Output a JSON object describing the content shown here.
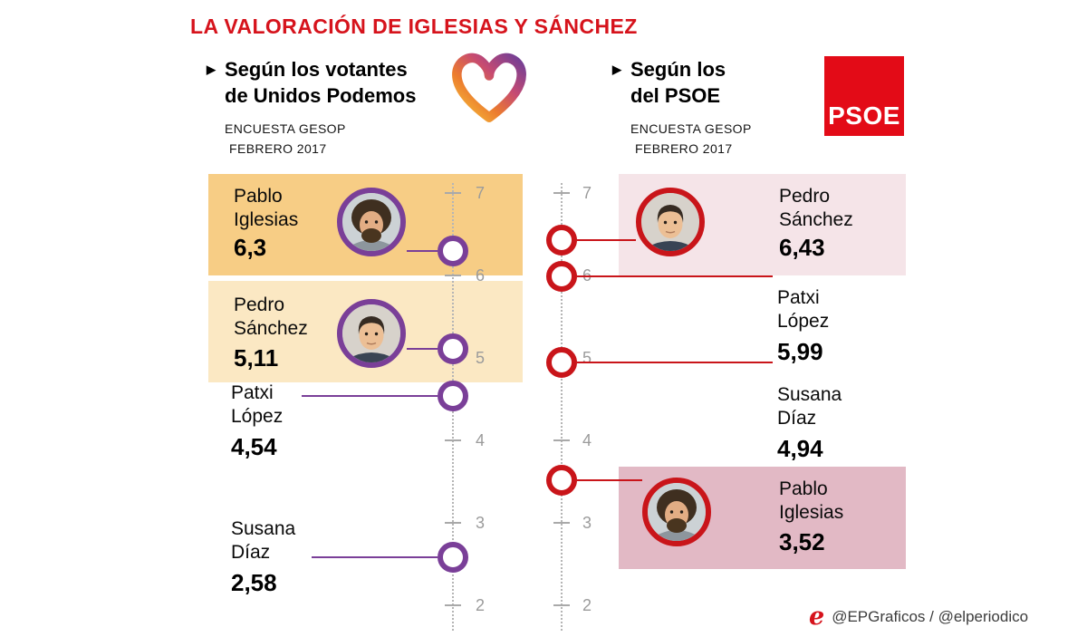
{
  "title": "LA VALORACIÓN DE IGLESIAS Y SÁNCHEZ",
  "credit": "@EPGraficos / @elperiodico",
  "colors": {
    "title": "#d6131c",
    "podemos_purple": "#7a3f98",
    "psoe_red": "#c9151a",
    "psoe_logo_red": "#e30b17",
    "highlight_orange_strong": "#f7cd85",
    "highlight_orange_soft": "#fbe8c3",
    "highlight_pink_soft": "#f5e4e8",
    "highlight_pink_strong": "#e2b9c5",
    "axis_gray": "#9b9b9b"
  },
  "left_panel": {
    "heading_line1": "Según los votantes",
    "heading_line2": "de Unidos Podemos",
    "source_line1": "ENCUESTA GESOP",
    "source_line2": "FEBRERO 2017",
    "logo": "unidos-podemos-heart"
  },
  "right_panel": {
    "heading_line1": "Según los",
    "heading_line2": "del PSOE",
    "source_line1": "ENCUESTA GESOP",
    "source_line2": "FEBRERO 2017",
    "logo_text": "PSOE"
  },
  "chart_data": [
    {
      "type": "scatter",
      "title": "Según los votantes de Unidos Podemos",
      "source": "ENCUESTA GESOP FEBRERO 2017",
      "axis_ticks": [
        7,
        6,
        5,
        4,
        3,
        2
      ],
      "ylim": [
        2,
        7
      ],
      "marker_color": "#7a3f98",
      "series": [
        {
          "name": "Pablo Iglesias",
          "first": "Pablo",
          "last": "Iglesias",
          "value": 6.3,
          "label": "6,3",
          "highlight": "strong",
          "photo": true
        },
        {
          "name": "Pedro Sánchez",
          "first": "Pedro",
          "last": "Sánchez",
          "value": 5.11,
          "label": "5,11",
          "highlight": "soft",
          "photo": true
        },
        {
          "name": "Patxi López",
          "first": "Patxi",
          "last": "López",
          "value": 4.54,
          "label": "4,54",
          "highlight": "none",
          "photo": false
        },
        {
          "name": "Susana Díaz",
          "first": "Susana",
          "last": "Díaz",
          "value": 2.58,
          "label": "2,58",
          "highlight": "none",
          "photo": false
        }
      ]
    },
    {
      "type": "scatter",
      "title": "Según los del PSOE",
      "source": "ENCUESTA GESOP FEBRERO 2017",
      "axis_ticks": [
        7,
        6,
        5,
        4,
        3,
        2
      ],
      "ylim": [
        2,
        7
      ],
      "marker_color": "#c9151a",
      "series": [
        {
          "name": "Pedro Sánchez",
          "first": "Pedro",
          "last": "Sánchez",
          "value": 6.43,
          "label": "6,43",
          "highlight": "soft",
          "photo": true
        },
        {
          "name": "Patxi López",
          "first": "Patxi",
          "last": "López",
          "value": 5.99,
          "label": "5,99",
          "highlight": "none",
          "photo": false
        },
        {
          "name": "Susana Díaz",
          "first": "Susana",
          "last": "Díaz",
          "value": 4.94,
          "label": "4,94",
          "highlight": "none",
          "photo": false
        },
        {
          "name": "Pablo Iglesias",
          "first": "Pablo",
          "last": "Iglesias",
          "value": 3.52,
          "label": "3,52",
          "highlight": "strong",
          "photo": true
        }
      ]
    }
  ]
}
